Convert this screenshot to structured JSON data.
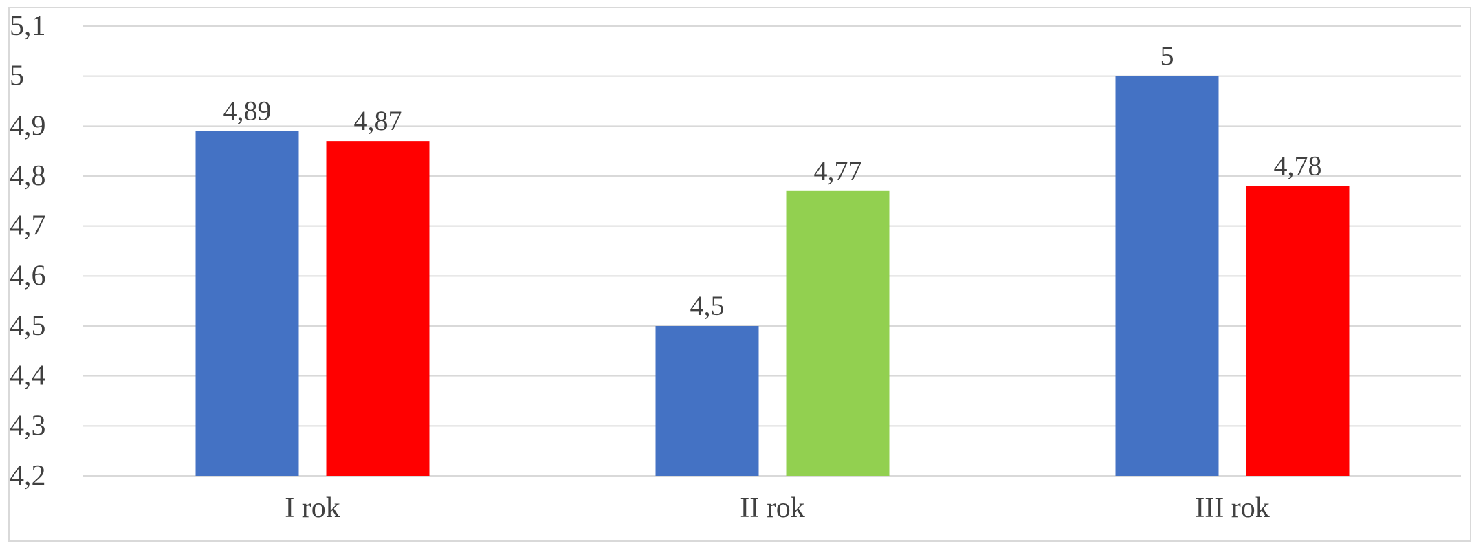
{
  "chart_data": {
    "type": "bar",
    "categories": [
      "I rok",
      "II rok",
      "III rok"
    ],
    "bars": [
      [
        {
          "value": 4.89,
          "label": "4,89",
          "color": "#4472C4"
        },
        {
          "value": 4.87,
          "label": "4,87",
          "color": "#FF0000"
        }
      ],
      [
        {
          "value": 4.5,
          "label": "4,5",
          "color": "#4472C4"
        },
        {
          "value": 4.77,
          "label": "4,77",
          "color": "#92D050"
        }
      ],
      [
        {
          "value": 5,
          "label": "5",
          "color": "#4472C4"
        },
        {
          "value": 4.78,
          "label": "4,78",
          "color": "#FF0000"
        }
      ]
    ],
    "ylim": [
      4.2,
      5.1
    ],
    "yticks": [
      4.2,
      4.3,
      4.4,
      4.5,
      4.6,
      4.7,
      4.8,
      4.9,
      5,
      5.1
    ],
    "ytick_labels": [
      "4,2",
      "4,3",
      "4,4",
      "4,5",
      "4,6",
      "4,7",
      "4,8",
      "4,9",
      "5",
      "5,1"
    ],
    "grid": true,
    "legend": "none",
    "title": "",
    "xlabel": "",
    "ylabel": "",
    "colors": {
      "gridline": "#D9D9D9",
      "text": "#404040"
    }
  }
}
